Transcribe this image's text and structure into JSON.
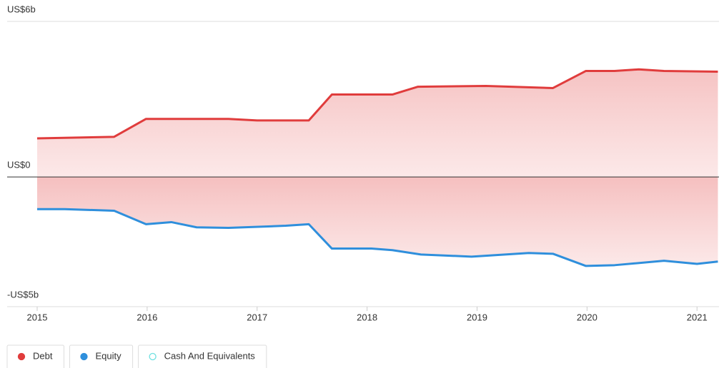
{
  "chart_data": {
    "type": "area",
    "xlim": [
      2015,
      2021.2
    ],
    "xticks": [
      2015,
      2016,
      2017,
      2018,
      2019,
      2020,
      2021
    ],
    "ylim": [
      -5,
      6
    ],
    "yticks": [
      {
        "value": 6,
        "label": "US$6b"
      },
      {
        "value": 0,
        "label": "US$0"
      },
      {
        "value": -5,
        "label": "-US$5b"
      }
    ],
    "grid": true,
    "legend": "bottom-left",
    "series": [
      {
        "name": "Debt",
        "color": "#e03c3c",
        "x": [
          2015.0,
          2015.7,
          2015.99,
          2016.74,
          2017.0,
          2017.47,
          2017.68,
          2018.23,
          2018.46,
          2019.08,
          2019.69,
          2019.99,
          2020.25,
          2020.47,
          2020.7,
          2021.19
        ],
        "values": [
          1.49,
          1.55,
          2.24,
          2.24,
          2.18,
          2.18,
          3.18,
          3.18,
          3.48,
          3.51,
          3.43,
          4.09,
          4.09,
          4.15,
          4.09,
          4.06
        ]
      },
      {
        "name": "Equity",
        "color": "#2f8fdc",
        "x": [
          2015.0,
          2015.25,
          2015.7,
          2015.99,
          2016.22,
          2016.45,
          2016.74,
          2017.26,
          2017.47,
          2017.68,
          2018.04,
          2018.23,
          2018.49,
          2018.95,
          2019.47,
          2019.69,
          2019.99,
          2020.25,
          2020.7,
          2021.0,
          2021.19
        ],
        "values": [
          -1.24,
          -1.24,
          -1.3,
          -1.82,
          -1.74,
          -1.94,
          -1.96,
          -1.88,
          -1.82,
          -2.76,
          -2.76,
          -2.82,
          -2.99,
          -3.07,
          -2.93,
          -2.96,
          -3.43,
          -3.4,
          -3.23,
          -3.35,
          -3.26
        ]
      },
      {
        "name": "Cash And Equivalents",
        "color": "#6ee0e0",
        "visible": false,
        "x": [],
        "values": []
      }
    ]
  }
}
